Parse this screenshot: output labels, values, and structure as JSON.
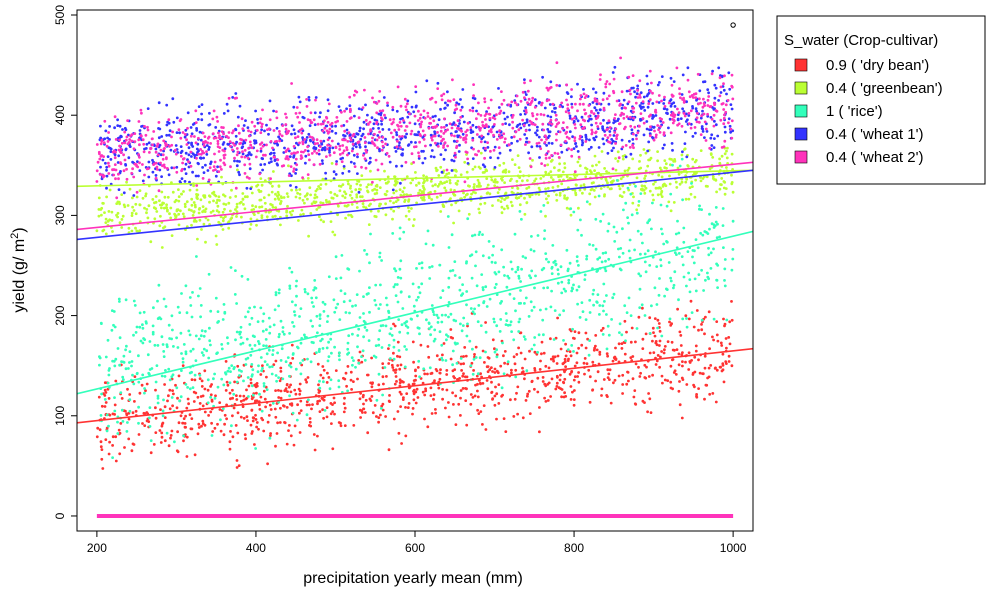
{
  "chart_data": {
    "type": "scatter",
    "title": "",
    "xlabel": "precipitation yearly mean (mm)",
    "ylabel_main": "yield (g/ m",
    "ylabel_sup": "2",
    "ylabel_close": ")",
    "xlim": [
      175,
      1025
    ],
    "ylim": [
      -15,
      505
    ],
    "xticks": [
      200,
      400,
      600,
      800,
      1000
    ],
    "yticks": [
      0,
      100,
      200,
      300,
      400,
      500
    ],
    "grid": false,
    "legend_position": "right",
    "legend_title": "S_water (Crop-cultivar)",
    "series": [
      {
        "name": "0.9 ( 'dry bean')",
        "color": "#ff3333",
        "x_range": [
          200,
          1000
        ],
        "y_center_at_xmin": 95,
        "y_center_at_xmax": 165,
        "y_spread": 55,
        "zero_yield_points": false,
        "trend_line": [
          [
            175,
            93
          ],
          [
            1025,
            167
          ]
        ]
      },
      {
        "name": "0.4 ( 'greenbean')",
        "color": "#bbff33",
        "x_range": [
          200,
          1000
        ],
        "y_center_at_xmin": 300,
        "y_center_at_xmax": 345,
        "y_spread": 30,
        "zero_yield_points": false,
        "trend_line": [
          [
            175,
            329
          ],
          [
            1025,
            345
          ]
        ]
      },
      {
        "name": "1 ( 'rice')",
        "color": "#33ffbb",
        "x_range": [
          200,
          1000
        ],
        "y_center_at_xmin": 140,
        "y_center_at_xmax": 270,
        "y_spread": 85,
        "zero_yield_points": true,
        "trend_line": [
          [
            175,
            122
          ],
          [
            1025,
            284
          ]
        ]
      },
      {
        "name": "0.4 ( 'wheat 1')",
        "color": "#3333ff",
        "x_range": [
          200,
          1000
        ],
        "y_center_at_xmin": 360,
        "y_center_at_xmax": 405,
        "y_spread": 45,
        "zero_yield_points": true,
        "trend_line": [
          [
            175,
            276
          ],
          [
            1025,
            345
          ]
        ]
      },
      {
        "name": "0.4 ( 'wheat 2')",
        "color": "#ff33bb",
        "x_range": [
          200,
          1000
        ],
        "y_center_at_xmin": 360,
        "y_center_at_xmax": 410,
        "y_spread": 45,
        "zero_yield_points": true,
        "trend_line": [
          [
            175,
            286
          ],
          [
            1025,
            353
          ]
        ]
      }
    ],
    "zero_line": {
      "x_range": [
        200,
        1000
      ],
      "y": 0,
      "color": "#ff33bb"
    },
    "outlier_point": {
      "x": 1000,
      "y": 490
    }
  }
}
